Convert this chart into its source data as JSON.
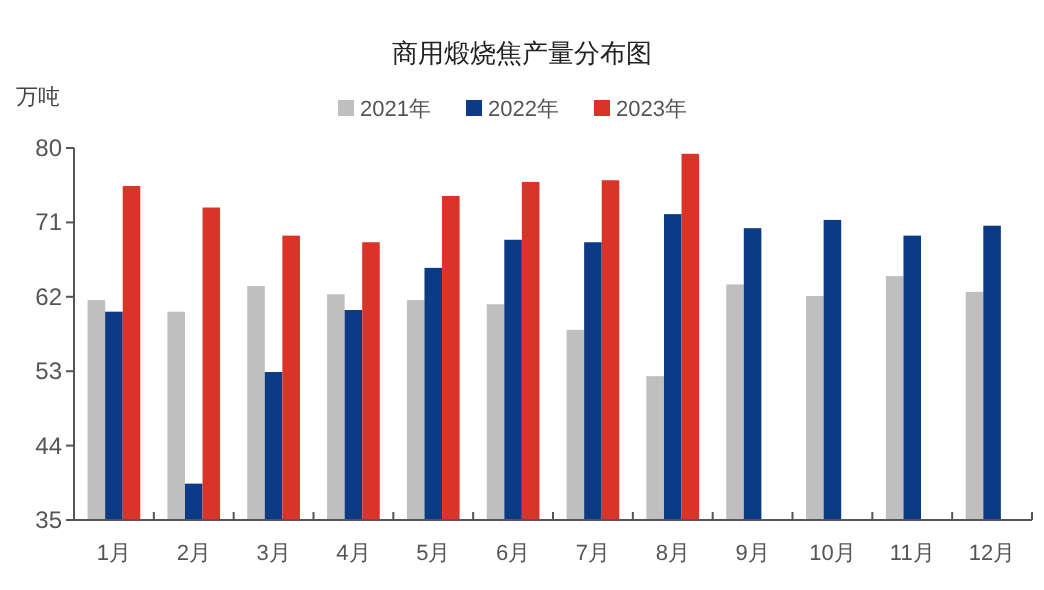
{
  "chart_data": {
    "type": "bar",
    "title": "商用煅烧焦产量分布图",
    "ylabel": "万吨",
    "categories": [
      "1月",
      "2月",
      "3月",
      "4月",
      "5月",
      "6月",
      "7月",
      "8月",
      "9月",
      "10月",
      "11月",
      "12月"
    ],
    "series": [
      {
        "name": "2021年",
        "color": "#bfbfbf",
        "values": [
          61.6,
          60.2,
          63.3,
          62.3,
          61.6,
          61.1,
          58.0,
          52.4,
          63.5,
          62.1,
          64.5,
          62.6
        ]
      },
      {
        "name": "2022年",
        "color": "#0d3a84",
        "values": [
          60.2,
          39.4,
          52.9,
          60.4,
          65.5,
          68.9,
          68.6,
          72.0,
          70.3,
          71.3,
          69.4,
          70.6
        ]
      },
      {
        "name": "2023年",
        "color": "#d93427",
        "values": [
          75.4,
          72.8,
          69.4,
          68.6,
          74.2,
          75.9,
          76.1,
          79.3,
          null,
          null,
          null,
          null
        ]
      }
    ],
    "ylim": [
      35,
      80
    ],
    "yticks": [
      35,
      44,
      53,
      62,
      71,
      80
    ],
    "legend": "top",
    "grid": false
  }
}
